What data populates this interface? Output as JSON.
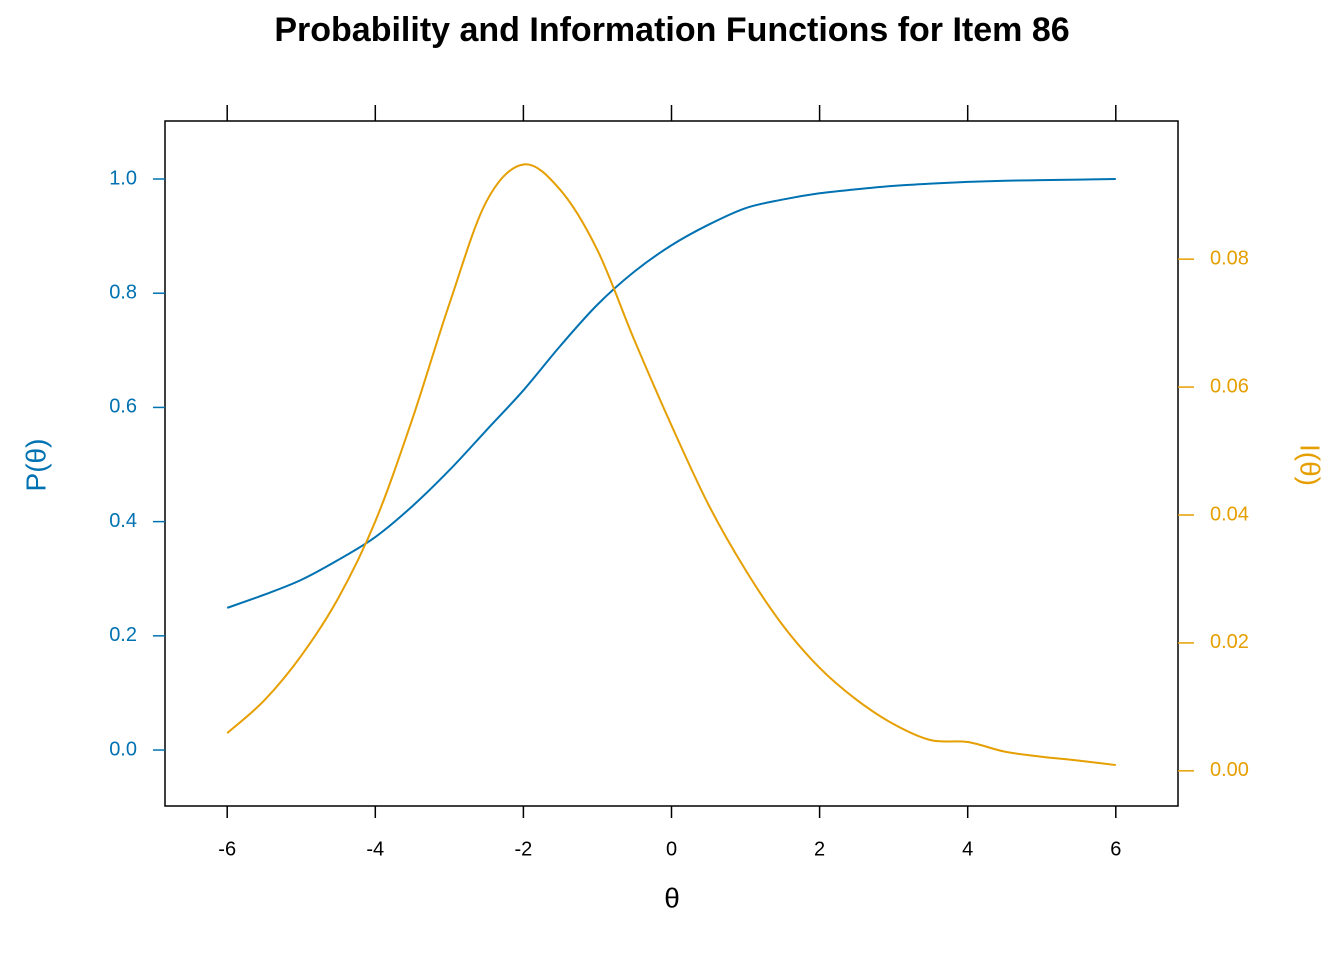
{
  "chart_data": {
    "type": "line",
    "title": "Probability and Information Functions for Item 86",
    "x_label": "θ",
    "y_label": "P(θ)",
    "y2_label": "I(θ)",
    "x": [
      -6,
      -5.5,
      -5,
      -4.5,
      -4,
      -3.5,
      -3,
      -2.5,
      -2,
      -1.5,
      -1,
      -0.5,
      0,
      0.5,
      1,
      1.5,
      2,
      2.5,
      3,
      3.5,
      4,
      4.5,
      5,
      5.5,
      6
    ],
    "series": [
      {
        "name": "P(θ)",
        "color": "#0072B2",
        "axis": "y",
        "values": [
          0.249,
          0.272,
          0.298,
          0.333,
          0.373,
          0.427,
          0.49,
          0.56,
          0.63,
          0.708,
          0.78,
          0.838,
          0.884,
          0.92,
          0.949,
          0.964,
          0.975,
          0.982,
          0.988,
          0.992,
          0.995,
          0.997,
          0.998,
          0.999,
          1.0
        ]
      },
      {
        "name": "I(θ)",
        "color": "#E69F00",
        "axis": "y2",
        "values": [
          0.0059,
          0.011,
          0.018,
          0.027,
          0.039,
          0.055,
          0.073,
          0.089,
          0.0948,
          0.0908,
          0.0814,
          0.0673,
          0.054,
          0.0416,
          0.0314,
          0.0228,
          0.0161,
          0.0111,
          0.0073,
          0.0048,
          0.0045,
          0.003,
          0.0022,
          0.0016,
          0.0009
        ]
      }
    ],
    "xlim": [
      -6.84,
      6.84
    ],
    "xticks": [
      -6,
      -4,
      -2,
      0,
      2,
      4,
      6
    ],
    "ylim": [
      -0.098,
      1.1016
    ],
    "yticks": [
      {
        "value": 0,
        "label": "0.0"
      },
      {
        "value": 0.2,
        "label": "0.2"
      },
      {
        "value": 0.4,
        "label": "0.4"
      },
      {
        "value": 0.6,
        "label": "0.6"
      },
      {
        "value": 0.8,
        "label": "0.8"
      },
      {
        "value": 1,
        "label": "1.0"
      }
    ],
    "y2lim": [
      -0.0055,
      0.1016
    ],
    "y2ticks": [
      {
        "value": 0,
        "label": "0.00"
      },
      {
        "value": 0.02,
        "label": "0.02"
      },
      {
        "value": 0.04,
        "label": "0.04"
      },
      {
        "value": 0.06,
        "label": "0.06"
      },
      {
        "value": 0.08,
        "label": "0.08"
      }
    ],
    "grid": false
  }
}
